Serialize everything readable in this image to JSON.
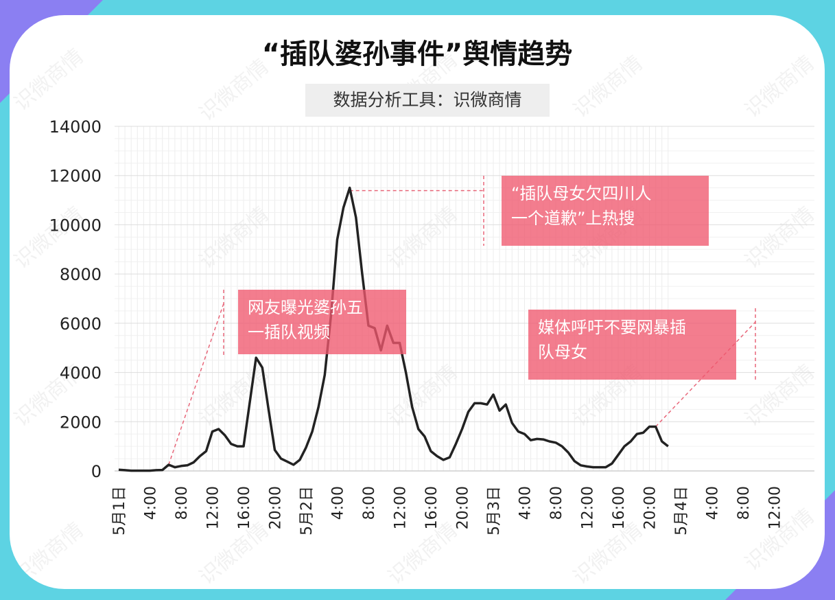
{
  "title": "“插队婆孙事件”舆情趋势",
  "subtitle": "数据分析工具：识微商情",
  "watermark": "识微商情",
  "colors": {
    "background": "#5dd3e3",
    "accent": "#8b7ff2",
    "annotation": "#f0586e",
    "line": "#222222"
  },
  "annotations": [
    {
      "text": "网友曝光婆孙五\n一插队视频"
    },
    {
      "text": "“插队母女欠四川人\n一个道歉”上热搜"
    },
    {
      "text": "媒体呼吁不要网暴插\n队母女"
    }
  ],
  "chart_data": {
    "type": "line",
    "ylim": [
      0,
      14000
    ],
    "yticks": [
      "0",
      "2000",
      "4000",
      "6000",
      "8000",
      "10000",
      "12000",
      "14000"
    ],
    "grid": true,
    "x_labels": [
      "5月1日",
      "4:00",
      "8:00",
      "12:00",
      "16:00",
      "20:00",
      "5月2日",
      "4:00",
      "8:00",
      "12:00",
      "16:00",
      "20:00",
      "5月3日",
      "4:00",
      "8:00",
      "12:00",
      "16:00",
      "20:00",
      "5月4日",
      "4:00",
      "8:00",
      "12:00"
    ],
    "values": [
      50,
      30,
      10,
      10,
      10,
      10,
      30,
      40,
      250,
      150,
      200,
      230,
      350,
      600,
      800,
      1600,
      1700,
      1450,
      1100,
      1000,
      1000,
      2800,
      4600,
      4200,
      2500,
      850,
      500,
      380,
      250,
      450,
      950,
      1600,
      2600,
      3900,
      6300,
      9400,
      10700,
      11500,
      10300,
      8000,
      5900,
      5800,
      4900,
      5900,
      5200,
      5200,
      4000,
      2600,
      1700,
      1400,
      800,
      600,
      450,
      550,
      1100,
      1700,
      2400,
      2750,
      2750,
      2700,
      3100,
      2450,
      2700,
      1950,
      1600,
      1500,
      1250,
      1300,
      1280,
      1200,
      1150,
      1000,
      750,
      400,
      230,
      180,
      150,
      150,
      150,
      300,
      650,
      1000,
      1200,
      1500,
      1550,
      1800,
      1800,
      1200,
      1000
    ]
  }
}
